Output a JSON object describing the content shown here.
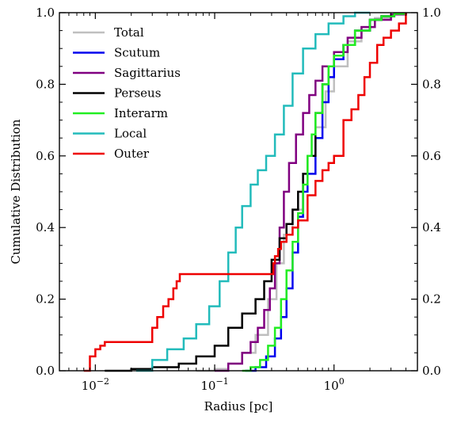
{
  "chart_data": {
    "type": "line",
    "subtype": "cumulative-step",
    "xlabel": "Radius [pc]",
    "ylabel": "Cumulative Distribution",
    "x_scale": "log",
    "xlim": [
      0.005,
      5
    ],
    "ylim": [
      0,
      1.0
    ],
    "x_ticks": [
      {
        "value": 0.01,
        "base": "10",
        "exp": "−2"
      },
      {
        "value": 0.1,
        "base": "10",
        "exp": "−1"
      },
      {
        "value": 1,
        "base": "10",
        "exp": "0"
      }
    ],
    "y_ticks": [
      "0.0",
      "0.2",
      "0.4",
      "0.6",
      "0.8",
      "1.0"
    ],
    "y_tick_values": [
      0,
      0.2,
      0.4,
      0.6,
      0.8,
      1.0
    ],
    "grid": false,
    "legend_position": "top-left",
    "series": [
      {
        "name": "Total",
        "color": "#bfbfbf",
        "x": [
          0.07,
          0.1,
          0.13,
          0.17,
          0.22,
          0.28,
          0.33,
          0.38,
          0.45,
          0.55,
          0.7,
          0.85,
          1.0,
          1.3,
          1.7,
          2.2,
          3.0,
          4.0
        ],
        "y": [
          0.0,
          0.005,
          0.02,
          0.05,
          0.1,
          0.2,
          0.3,
          0.38,
          0.45,
          0.55,
          0.68,
          0.78,
          0.85,
          0.92,
          0.96,
          0.985,
          0.995,
          1.0
        ]
      },
      {
        "name": "Scutum",
        "color": "#0000ee",
        "x": [
          0.18,
          0.22,
          0.27,
          0.32,
          0.36,
          0.4,
          0.45,
          0.5,
          0.55,
          0.6,
          0.7,
          0.8,
          0.9,
          1.0,
          1.2,
          1.5,
          2.0,
          2.5,
          3.2,
          4.0
        ],
        "y": [
          0.0,
          0.01,
          0.04,
          0.09,
          0.15,
          0.23,
          0.33,
          0.43,
          0.5,
          0.55,
          0.65,
          0.75,
          0.82,
          0.87,
          0.91,
          0.95,
          0.98,
          0.99,
          0.997,
          1.0
        ]
      },
      {
        "name": "Sagittarius",
        "color": "#800080",
        "x": [
          0.1,
          0.13,
          0.17,
          0.2,
          0.23,
          0.26,
          0.29,
          0.32,
          0.35,
          0.38,
          0.42,
          0.48,
          0.55,
          0.62,
          0.7,
          0.8,
          1.0,
          1.3,
          1.7,
          2.2,
          3.0,
          4.0
        ],
        "y": [
          0.0,
          0.02,
          0.05,
          0.08,
          0.12,
          0.17,
          0.23,
          0.3,
          0.4,
          0.5,
          0.58,
          0.66,
          0.72,
          0.77,
          0.81,
          0.85,
          0.89,
          0.93,
          0.96,
          0.98,
          0.995,
          1.0
        ]
      },
      {
        "name": "Perseus",
        "color": "#000000",
        "x": [
          0.012,
          0.02,
          0.03,
          0.05,
          0.07,
          0.1,
          0.13,
          0.17,
          0.22,
          0.26,
          0.3,
          0.35,
          0.4,
          0.45,
          0.5,
          0.55,
          0.6,
          0.7,
          0.8,
          0.9,
          1.0,
          1.2,
          1.5,
          2.0,
          2.5,
          3.2,
          4.0
        ],
        "y": [
          0.0,
          0.005,
          0.01,
          0.02,
          0.04,
          0.07,
          0.12,
          0.16,
          0.2,
          0.25,
          0.31,
          0.37,
          0.41,
          0.45,
          0.5,
          0.55,
          0.6,
          0.72,
          0.8,
          0.85,
          0.88,
          0.91,
          0.95,
          0.98,
          0.99,
          0.997,
          1.0
        ]
      },
      {
        "name": "Interarm",
        "color": "#22ee22",
        "x": [
          0.17,
          0.2,
          0.24,
          0.28,
          0.32,
          0.36,
          0.4,
          0.45,
          0.5,
          0.55,
          0.6,
          0.65,
          0.7,
          0.8,
          0.9,
          1.0,
          1.2,
          1.5,
          2.0,
          2.5,
          3.2,
          4.0
        ],
        "y": [
          0.0,
          0.01,
          0.03,
          0.07,
          0.12,
          0.2,
          0.28,
          0.36,
          0.44,
          0.52,
          0.6,
          0.66,
          0.72,
          0.8,
          0.85,
          0.88,
          0.91,
          0.95,
          0.98,
          0.99,
          0.997,
          1.0
        ]
      },
      {
        "name": "Local",
        "color": "#22bbbb",
        "x": [
          0.022,
          0.03,
          0.04,
          0.055,
          0.07,
          0.09,
          0.11,
          0.13,
          0.15,
          0.17,
          0.2,
          0.23,
          0.27,
          0.32,
          0.38,
          0.45,
          0.55,
          0.7,
          0.9,
          1.2,
          1.5,
          2.0
        ],
        "y": [
          0.0,
          0.03,
          0.06,
          0.09,
          0.13,
          0.18,
          0.25,
          0.33,
          0.4,
          0.46,
          0.52,
          0.56,
          0.6,
          0.66,
          0.74,
          0.83,
          0.9,
          0.94,
          0.97,
          0.99,
          1.0,
          1.0
        ]
      },
      {
        "name": "Outer",
        "color": "#ee0000",
        "x": [
          0.008,
          0.009,
          0.01,
          0.011,
          0.012,
          0.014,
          0.02,
          0.03,
          0.033,
          0.037,
          0.041,
          0.045,
          0.048,
          0.051,
          0.053,
          0.055,
          0.3,
          0.31,
          0.32,
          0.34,
          0.36,
          0.4,
          0.45,
          0.5,
          0.6,
          0.7,
          0.8,
          0.9,
          1.0,
          1.2,
          1.4,
          1.6,
          1.8,
          2.0,
          2.3,
          2.6,
          3.0,
          3.5,
          4.0
        ],
        "y": [
          0.0,
          0.04,
          0.06,
          0.07,
          0.08,
          0.08,
          0.08,
          0.12,
          0.15,
          0.18,
          0.2,
          0.23,
          0.25,
          0.27,
          0.27,
          0.27,
          0.27,
          0.3,
          0.32,
          0.34,
          0.36,
          0.38,
          0.4,
          0.42,
          0.49,
          0.53,
          0.56,
          0.58,
          0.6,
          0.7,
          0.73,
          0.77,
          0.82,
          0.86,
          0.91,
          0.93,
          0.95,
          0.97,
          1.0
        ]
      }
    ]
  }
}
